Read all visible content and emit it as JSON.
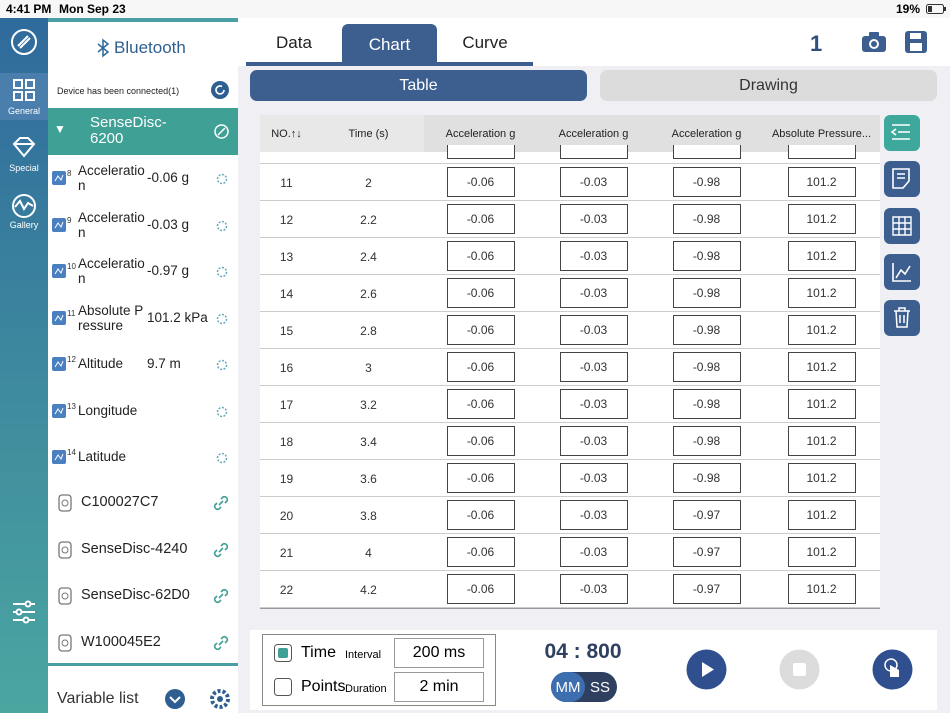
{
  "status_bar": {
    "time": "4:41 PM",
    "date": "Mon Sep 23",
    "battery": "19%"
  },
  "nav": {
    "items": [
      "General",
      "Special",
      "Gallery"
    ]
  },
  "device_panel": {
    "title": "Bluetooth",
    "status": "Device has been connected(1)",
    "connected_device": "SenseDisc-6200",
    "sensors": [
      {
        "num": 8,
        "name": "Acceleration",
        "value": "-0.06 g"
      },
      {
        "num": 9,
        "name": "Acceleration",
        "value": "-0.03 g"
      },
      {
        "num": 10,
        "name": "Acceleration",
        "value": "-0.97 g"
      },
      {
        "num": 11,
        "name": "Absolute Pressure",
        "value": "101.2 kPa"
      },
      {
        "num": 12,
        "name": "Altitude",
        "value": "9.7 m"
      },
      {
        "num": 13,
        "name": "Longitude"
      },
      {
        "num": 14,
        "name": "Latitude"
      }
    ],
    "other_devices": [
      "C100027C7",
      "SenseDisc-4240",
      "SenseDisc-62D0",
      "W100045E2"
    ],
    "footer": "Variable list"
  },
  "tabs": {
    "items": [
      "Data",
      "Chart",
      "Curve"
    ],
    "count": 1
  },
  "subtabs": [
    "Table",
    "Drawing"
  ],
  "table": {
    "header": [
      "NO.↑↓",
      "Time (s)",
      "Acceleration g",
      "Acceleration g",
      "Acceleration g",
      "Absolute Pressure..."
    ],
    "rows": [
      [
        11,
        2,
        -0.06,
        -0.03,
        -0.98,
        101.2
      ],
      [
        12,
        2.2,
        -0.06,
        -0.03,
        -0.98,
        101.2
      ],
      [
        13,
        2.4,
        -0.06,
        -0.03,
        -0.98,
        101.2
      ],
      [
        14,
        2.6,
        -0.06,
        -0.03,
        -0.98,
        101.2
      ],
      [
        15,
        2.8,
        -0.06,
        -0.03,
        -0.98,
        101.2
      ],
      [
        16,
        3,
        -0.06,
        -0.03,
        -0.98,
        101.2
      ],
      [
        17,
        3.2,
        -0.06,
        -0.03,
        -0.98,
        101.2
      ],
      [
        18,
        3.4,
        -0.06,
        -0.03,
        -0.98,
        101.2
      ],
      [
        19,
        3.6,
        -0.06,
        -0.03,
        -0.98,
        101.2
      ],
      [
        20,
        3.8,
        -0.06,
        -0.03,
        -0.97,
        101.2
      ],
      [
        21,
        4,
        -0.06,
        -0.03,
        -0.97,
        101.2
      ],
      [
        22,
        4.2,
        -0.06,
        -0.03,
        -0.97,
        101.2
      ]
    ]
  },
  "controls": {
    "time_label": "Time",
    "interval_label": "Interval",
    "interval_value": "200 ms",
    "points_label": "Points",
    "duration_label": "Duration",
    "duration_value": "2 min",
    "timer": "04 : 800",
    "unit_mm": "MM",
    "unit_ss": "SS"
  }
}
